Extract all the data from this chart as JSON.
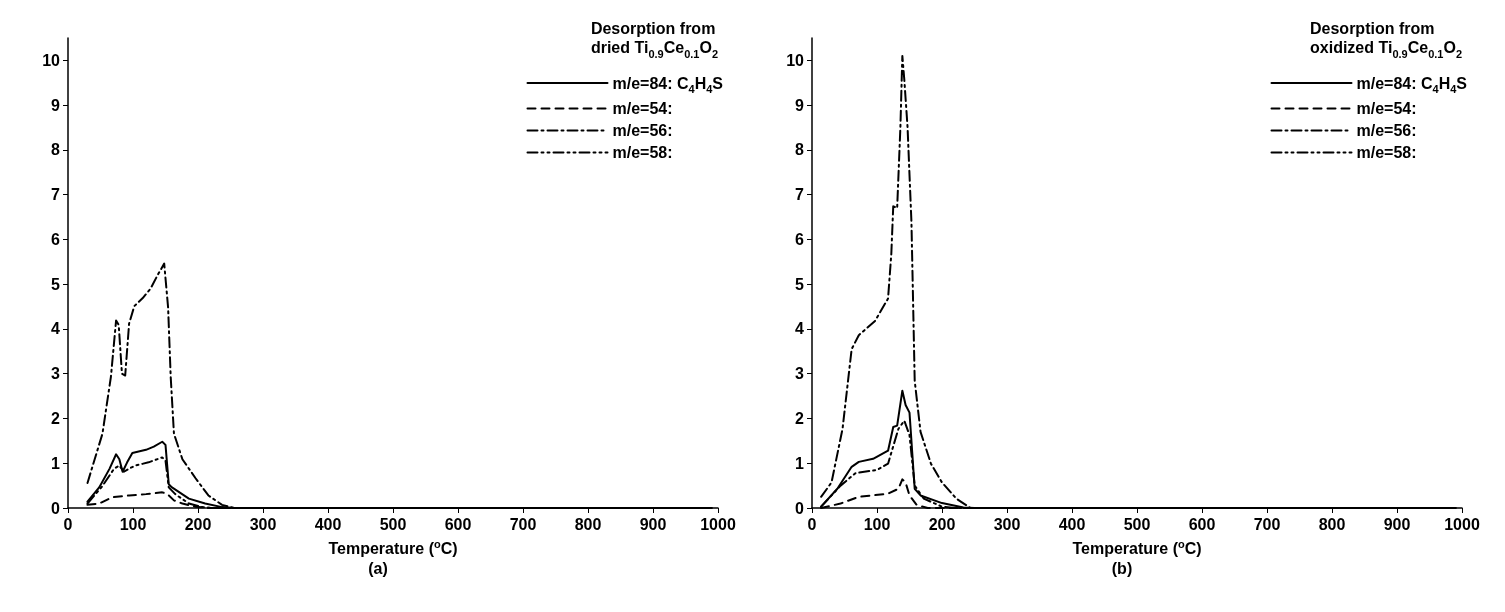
{
  "chart_data": [
    {
      "type": "line",
      "legend_title": "Desorption from\ndried Ti$_{0.9}$Ce$_{0.1}$O$_{2}$",
      "xlabel": "Temperature ($^{o}$C)",
      "annotations": [
        "(a)"
      ],
      "legend": "top right",
      "xlim": [
        0,
        1000
      ],
      "ylim": [
        0,
        10.5
      ],
      "xticks": [
        0,
        100,
        200,
        300,
        400,
        500,
        600,
        700,
        800,
        900,
        1000
      ],
      "yticks": [
        0,
        1,
        2,
        3,
        4,
        5,
        6,
        7,
        8,
        9,
        10
      ],
      "series": [
        {
          "name": "m/e=84: C$_{4}$H$_{4}$S",
          "color": "#000000",
          "line_style": "solid",
          "x": [
            30,
            48,
            64,
            74,
            79,
            84,
            91,
            99,
            120,
            132,
            145,
            150,
            155,
            160,
            186,
            211,
            237,
            256,
            990
          ],
          "values": [
            0.14,
            0.46,
            0.88,
            1.2,
            1.09,
            0.81,
            1.02,
            1.23,
            1.3,
            1.37,
            1.48,
            1.41,
            0.53,
            0.46,
            0.21,
            0.1,
            0.02,
            0,
            0
          ]
        },
        {
          "name": "m/e=54:",
          "color": "#000000",
          "line_style": "dashed",
          "x": [
            30,
            48,
            68,
            94,
            120,
            145,
            153,
            163,
            176,
            196,
            216,
            990
          ],
          "values": [
            0.07,
            0.1,
            0.24,
            0.28,
            0.31,
            0.35,
            0.31,
            0.17,
            0.1,
            0.03,
            0,
            0
          ]
        },
        {
          "name": "m/e=56:",
          "color": "#000000",
          "line_style": "dashdot",
          "x": [
            30,
            53,
            66,
            74,
            78,
            83,
            88,
            94,
            102,
            115,
            127,
            137,
            148,
            154,
            158,
            163,
            176,
            196,
            216,
            237,
            256,
            990
          ],
          "values": [
            0.56,
            1.66,
            2.93,
            4.19,
            4.09,
            3.0,
            2.96,
            4.12,
            4.51,
            4.69,
            4.9,
            5.18,
            5.46,
            4.48,
            2.93,
            1.66,
            1.09,
            0.67,
            0.28,
            0.07,
            0,
            0
          ]
        },
        {
          "name": "m/e=58:",
          "color": "#000000",
          "line_style": "dashdotdot",
          "x": [
            30,
            53,
            71,
            79,
            86,
            94,
            104,
            124,
            145,
            150,
            155,
            165,
            186,
            206,
            226,
            990
          ],
          "values": [
            0.1,
            0.49,
            0.88,
            0.95,
            0.81,
            0.88,
            0.95,
            1.02,
            1.13,
            1.06,
            0.46,
            0.31,
            0.1,
            0.02,
            0,
            0
          ]
        }
      ]
    },
    {
      "type": "line",
      "legend_title": "Desorption from\noxidized Ti$_{0.9}$Ce$_{0.1}$O$_{2}$",
      "xlabel": "Temperature ($^{o}$C)",
      "annotations": [
        "(b)"
      ],
      "legend": "top right",
      "xlim": [
        0,
        1000
      ],
      "ylim": [
        0,
        10.5
      ],
      "xticks": [
        0,
        100,
        200,
        300,
        400,
        500,
        600,
        700,
        800,
        900,
        1000
      ],
      "yticks": [
        0,
        1,
        2,
        3,
        4,
        5,
        6,
        7,
        8,
        9,
        10
      ],
      "series": [
        {
          "name": "m/e=84: C$_{4}$H$_{4}$S",
          "color": "#000000",
          "line_style": "solid",
          "x": [
            14,
            39,
            61,
            72,
            94,
            117,
            125,
            131,
            139,
            144,
            150,
            158,
            167,
            200,
            233,
            250,
            990
          ],
          "values": [
            0.03,
            0.43,
            0.92,
            1.03,
            1.1,
            1.28,
            1.81,
            1.84,
            2.62,
            2.3,
            2.13,
            0.43,
            0.28,
            0.11,
            0.01,
            0,
            0
          ]
        },
        {
          "name": "m/e=54:",
          "color": "#000000",
          "line_style": "dashed",
          "x": [
            14,
            44,
            72,
            117,
            133,
            139,
            144,
            150,
            161,
            178,
            990
          ],
          "values": [
            0,
            0.1,
            0.25,
            0.32,
            0.43,
            0.64,
            0.57,
            0.28,
            0.07,
            0,
            0
          ]
        },
        {
          "name": "m/e=56:",
          "color": "#000000",
          "line_style": "dashdot",
          "x": [
            14,
            30,
            47,
            61,
            72,
            97,
            117,
            122,
            125,
            131,
            136,
            139,
            142,
            147,
            153,
            156,
            158,
            167,
            183,
            200,
            222,
            244,
            990
          ],
          "values": [
            0.25,
            0.57,
            1.77,
            3.55,
            3.86,
            4.18,
            4.68,
            5.67,
            6.74,
            6.7,
            8.51,
            10.1,
            9.57,
            8.51,
            6.38,
            4.26,
            2.84,
            1.7,
            0.99,
            0.57,
            0.21,
            0,
            0
          ]
        },
        {
          "name": "m/e=58:",
          "color": "#000000",
          "line_style": "dashdotdot",
          "x": [
            14,
            44,
            67,
            100,
            117,
            133,
            142,
            150,
            158,
            172,
            200,
            220,
            990
          ],
          "values": [
            0.03,
            0.5,
            0.78,
            0.85,
            0.99,
            1.77,
            1.95,
            1.63,
            0.5,
            0.21,
            0.03,
            0,
            0
          ]
        }
      ]
    }
  ]
}
